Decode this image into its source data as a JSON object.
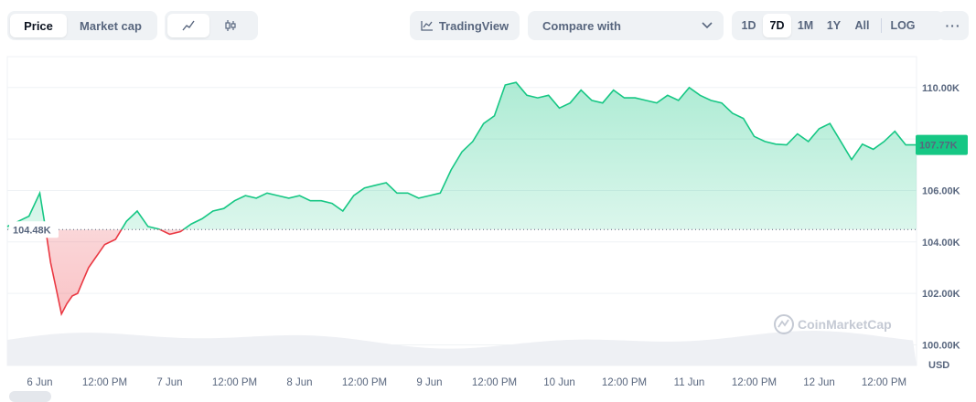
{
  "tabs": {
    "price": "Price",
    "market_cap": "Market cap",
    "active": "price"
  },
  "view_toggle": {
    "line_icon": "line-chart-icon",
    "candle_icon": "candlestick-icon",
    "active": "line"
  },
  "tradingview": {
    "label": "TradingView",
    "icon": "tradingview-icon"
  },
  "compare": {
    "label": "Compare with",
    "icon": "chevron-down-icon"
  },
  "ranges": {
    "items": [
      "1D",
      "7D",
      "1M",
      "1Y",
      "All"
    ],
    "active": "7D",
    "log": "LOG",
    "more_icon": "more-icon"
  },
  "watermark": "CoinMarketCap",
  "colors": {
    "up": "#16c784",
    "down": "#ea3943",
    "accent": "#16c784",
    "grid": "#eff2f5"
  },
  "chart_data": {
    "type": "line",
    "series": [
      {
        "x": [
          "2025-06-05 18:00",
          "2025-06-05 20:00",
          "2025-06-05 22:00",
          "2025-06-06 00:00",
          "2025-06-06 01:00",
          "2025-06-06 02:00",
          "2025-06-06 03:00",
          "2025-06-06 04:00",
          "2025-06-06 05:00",
          "2025-06-06 06:00",
          "2025-06-06 07:00",
          "2025-06-06 08:00",
          "2025-06-06 09:00",
          "2025-06-06 10:00",
          "2025-06-06 11:00",
          "2025-06-06 12:00",
          "2025-06-06 14:00",
          "2025-06-06 16:00",
          "2025-06-06 18:00",
          "2025-06-06 20:00",
          "2025-06-06 22:00",
          "2025-06-07 00:00",
          "2025-06-07 02:00",
          "2025-06-07 04:00",
          "2025-06-07 06:00",
          "2025-06-07 08:00",
          "2025-06-07 10:00",
          "2025-06-07 12:00",
          "2025-06-07 14:00",
          "2025-06-07 16:00",
          "2025-06-07 18:00",
          "2025-06-07 20:00",
          "2025-06-07 22:00",
          "2025-06-08 00:00",
          "2025-06-08 02:00",
          "2025-06-08 04:00",
          "2025-06-08 06:00",
          "2025-06-08 08:00",
          "2025-06-08 10:00",
          "2025-06-08 12:00",
          "2025-06-08 14:00",
          "2025-06-08 16:00",
          "2025-06-08 18:00",
          "2025-06-08 20:00",
          "2025-06-08 22:00",
          "2025-06-09 00:00",
          "2025-06-09 02:00",
          "2025-06-09 04:00",
          "2025-06-09 06:00",
          "2025-06-09 08:00",
          "2025-06-09 10:00",
          "2025-06-09 12:00",
          "2025-06-09 14:00",
          "2025-06-09 16:00",
          "2025-06-09 18:00",
          "2025-06-09 20:00",
          "2025-06-09 22:00",
          "2025-06-10 00:00",
          "2025-06-10 02:00",
          "2025-06-10 04:00",
          "2025-06-10 06:00",
          "2025-06-10 08:00",
          "2025-06-10 10:00",
          "2025-06-10 12:00",
          "2025-06-10 14:00",
          "2025-06-10 16:00",
          "2025-06-10 18:00",
          "2025-06-10 20:00",
          "2025-06-10 22:00",
          "2025-06-11 00:00",
          "2025-06-11 02:00",
          "2025-06-11 04:00",
          "2025-06-11 06:00",
          "2025-06-11 08:00",
          "2025-06-11 10:00",
          "2025-06-11 12:00",
          "2025-06-11 14:00",
          "2025-06-11 16:00",
          "2025-06-11 18:00",
          "2025-06-11 20:00",
          "2025-06-11 22:00",
          "2025-06-12 00:00",
          "2025-06-12 02:00",
          "2025-06-12 04:00",
          "2025-06-12 06:00",
          "2025-06-12 08:00",
          "2025-06-12 10:00",
          "2025-06-12 12:00",
          "2025-06-12 14:00",
          "2025-06-12 16:00",
          "2025-06-12 18:00"
        ],
        "y": [
          104.6,
          104.8,
          105.0,
          105.9,
          104.6,
          103.2,
          102.2,
          101.2,
          101.6,
          101.9,
          102.0,
          102.5,
          103.0,
          103.3,
          103.6,
          103.9,
          104.1,
          104.8,
          105.2,
          104.6,
          104.5,
          104.3,
          104.4,
          104.7,
          104.9,
          105.2,
          105.3,
          105.6,
          105.8,
          105.7,
          105.9,
          105.8,
          105.7,
          105.8,
          105.6,
          105.6,
          105.5,
          105.2,
          105.8,
          106.1,
          106.2,
          106.3,
          105.9,
          105.9,
          105.7,
          105.8,
          105.9,
          106.8,
          107.5,
          107.9,
          108.6,
          108.9,
          110.1,
          110.2,
          109.7,
          109.6,
          109.7,
          109.2,
          109.4,
          109.9,
          109.5,
          109.4,
          109.9,
          109.6,
          109.6,
          109.5,
          109.4,
          109.7,
          109.5,
          110.0,
          109.7,
          109.5,
          109.4,
          109.0,
          108.8,
          108.1,
          107.9,
          107.8,
          107.77,
          108.2,
          107.9,
          108.4,
          108.6,
          107.9,
          107.2,
          107.8,
          107.6,
          107.9,
          108.3,
          107.77,
          107.77
        ],
        "baseline": 104.48
      }
    ],
    "ylim": [
      99.2,
      111.2
    ],
    "yticks": [
      "110.00K",
      "108.00K",
      "106.00K",
      "104.00K",
      "102.00K",
      "100.00K"
    ],
    "yticks_values": [
      110,
      108,
      106,
      104,
      102,
      100
    ],
    "xticks": [
      "6 Jun",
      "12:00 PM",
      "7 Jun",
      "12:00 PM",
      "8 Jun",
      "12:00 PM",
      "9 Jun",
      "12:00 PM",
      "10 Jun",
      "12:00 PM",
      "11 Jun",
      "12:00 PM",
      "12 Jun",
      "12:00 PM"
    ],
    "xticks_values": [
      "2025-06-06 00:00",
      "2025-06-06 12:00",
      "2025-06-07 00:00",
      "2025-06-07 12:00",
      "2025-06-08 00:00",
      "2025-06-08 12:00",
      "2025-06-09 00:00",
      "2025-06-09 12:00",
      "2025-06-10 00:00",
      "2025-06-10 12:00",
      "2025-06-11 00:00",
      "2025-06-11 12:00",
      "2025-06-12 00:00",
      "2025-06-12 12:00"
    ],
    "baseline_label": "104.48K",
    "current_label": "107.77K",
    "unit": "USD",
    "grid": true
  }
}
